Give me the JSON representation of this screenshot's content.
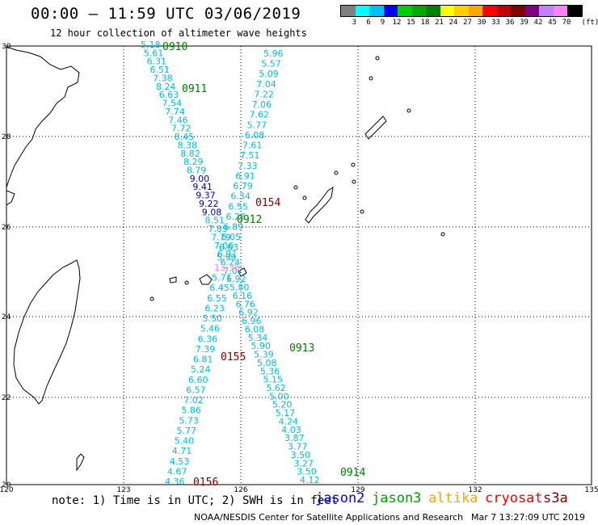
{
  "header": {
    "title": "00:00 – 11:59 UTC 03/06/2019",
    "subtitle": "12 hour collection of altimeter wave heights"
  },
  "scale": {
    "colors": [
      "#808080",
      "#00ffff",
      "#00bfff",
      "#0000ff",
      "#00d000",
      "#00a800",
      "#008000",
      "#ffff00",
      "#ffd000",
      "#ffa500",
      "#ff0000",
      "#c00000",
      "#800000",
      "#800080",
      "#c080ff",
      "#ff80ff",
      "#000000"
    ],
    "labels": [
      "3",
      "6",
      "9",
      "12",
      "15",
      "18",
      "21",
      "24",
      "27",
      "30",
      "33",
      "36",
      "39",
      "42",
      "45",
      "70"
    ],
    "unit": "(ft)"
  },
  "axes": {
    "lat_labels": [
      "30",
      "28",
      "26",
      "24",
      "22",
      "20"
    ],
    "lon_labels": [
      "120",
      "123",
      "126",
      "129",
      "132",
      "135"
    ]
  },
  "tracks": {
    "jason3_0910": {
      "label": "0910",
      "color": "#008000"
    },
    "jason3_0911": {
      "label": "0911",
      "color": "#008000"
    },
    "jason3_0912": {
      "label": "0912",
      "color": "#008000"
    },
    "jason3_0913": {
      "label": "0913",
      "color": "#008000"
    },
    "jason3_0914": {
      "label": "0914",
      "color": "#008000"
    },
    "s3a_0154": {
      "label": "0154",
      "color": "#800000"
    },
    "s3a_0155": {
      "label": "0155",
      "color": "#800000"
    },
    "s3a_0156": {
      "label": "0156",
      "color": "#800000"
    }
  },
  "observations_a": [
    "5.18",
    "5.61",
    "6.31",
    "6.51",
    "7.38",
    "8.24",
    "6.63",
    "7.54",
    "7.74",
    "7.46",
    "7.72",
    "8.45",
    "8.38",
    "8.82",
    "8.29",
    "8.79",
    "9.00",
    "9.41",
    "9.37",
    "9.22",
    "9.08",
    "8.51",
    "7.89",
    "7.79",
    "7.06",
    "6.91",
    "6.24",
    "7.07",
    "6.92",
    "5.80",
    "6.16",
    "6.76",
    "6.92",
    "6.96",
    "6.08",
    "5.34",
    "5.90",
    "5.39",
    "5.08",
    "5.36",
    "5.15",
    "5.62",
    "5.00",
    "5.20",
    "5.17",
    "4.24",
    "4.03",
    "3.87",
    "3.77",
    "3.50",
    "3.27",
    "3.50",
    "4.12"
  ],
  "observations_b": [
    "5.96",
    "5.57",
    "5.09",
    "7.04",
    "7.22",
    "7.06",
    "7.62",
    "5.77",
    "6.08",
    "7.61",
    "7.51",
    "7.33",
    "6.91",
    "6.79",
    "6.34",
    "6.55",
    "6.26",
    "6.89",
    "6.05",
    "6.63",
    "5.99",
    "13.38",
    "5.71",
    "6.45",
    "6.55",
    "6.23",
    "5.50",
    "5.46",
    "6.36",
    "7.39",
    "6.81",
    "5.24",
    "6.60",
    "6.57",
    "7.02",
    "5.86",
    "5.73",
    "5.77",
    "5.40",
    "4.71",
    "4.53",
    "4.67",
    "4.36"
  ],
  "note": "note: 1) Time is in UTC; 2) SWH is in feet",
  "legend": [
    {
      "label": "jason2",
      "color": "#0000ff"
    },
    {
      "label": "jason3",
      "color": "#00a000"
    },
    {
      "label": "altika",
      "color": "#ffa500"
    },
    {
      "label": "cryosat",
      "color": "#ff0000"
    },
    {
      "label": "s3a",
      "color": "#800000"
    }
  ],
  "credit": "NOAA/NESDIS Center for Satellite Applications and Research",
  "credit_time": "Mar  7 13:27:09 UTC 2019"
}
